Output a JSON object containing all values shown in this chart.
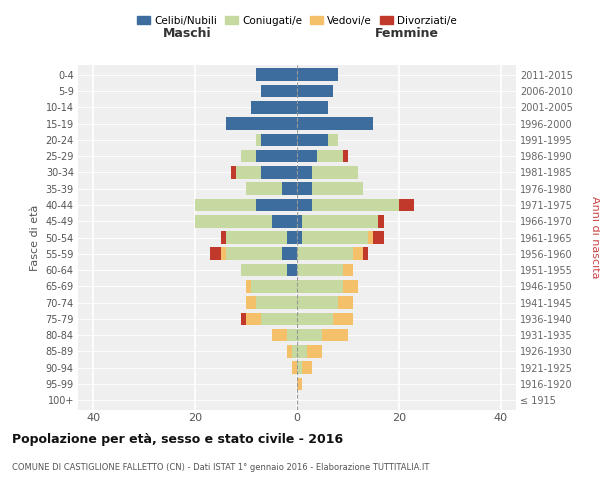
{
  "age_groups": [
    "100+",
    "95-99",
    "90-94",
    "85-89",
    "80-84",
    "75-79",
    "70-74",
    "65-69",
    "60-64",
    "55-59",
    "50-54",
    "45-49",
    "40-44",
    "35-39",
    "30-34",
    "25-29",
    "20-24",
    "15-19",
    "10-14",
    "5-9",
    "0-4"
  ],
  "birth_years": [
    "≤ 1915",
    "1916-1920",
    "1921-1925",
    "1926-1930",
    "1931-1935",
    "1936-1940",
    "1941-1945",
    "1946-1950",
    "1951-1955",
    "1956-1960",
    "1961-1965",
    "1966-1970",
    "1971-1975",
    "1976-1980",
    "1981-1985",
    "1986-1990",
    "1991-1995",
    "1996-2000",
    "2001-2005",
    "2006-2010",
    "2011-2015"
  ],
  "male": {
    "celibi": [
      0,
      0,
      0,
      0,
      0,
      0,
      0,
      0,
      2,
      3,
      2,
      5,
      8,
      3,
      7,
      8,
      7,
      14,
      9,
      7,
      8
    ],
    "coniugati": [
      0,
      0,
      0,
      1,
      2,
      7,
      8,
      9,
      9,
      11,
      12,
      15,
      12,
      7,
      5,
      3,
      1,
      0,
      0,
      0,
      0
    ],
    "vedovi": [
      0,
      0,
      1,
      1,
      3,
      3,
      2,
      1,
      0,
      1,
      0,
      0,
      0,
      0,
      0,
      0,
      0,
      0,
      0,
      0,
      0
    ],
    "divorziati": [
      0,
      0,
      0,
      0,
      0,
      1,
      0,
      0,
      0,
      2,
      1,
      0,
      0,
      0,
      1,
      0,
      0,
      0,
      0,
      0,
      0
    ]
  },
  "female": {
    "nubili": [
      0,
      0,
      0,
      0,
      0,
      0,
      0,
      0,
      0,
      0,
      1,
      1,
      3,
      3,
      3,
      4,
      6,
      15,
      6,
      7,
      8
    ],
    "coniugate": [
      0,
      0,
      1,
      2,
      5,
      7,
      8,
      9,
      9,
      11,
      13,
      15,
      17,
      10,
      9,
      5,
      2,
      0,
      0,
      0,
      0
    ],
    "vedove": [
      0,
      1,
      2,
      3,
      5,
      4,
      3,
      3,
      2,
      2,
      1,
      0,
      0,
      0,
      0,
      0,
      0,
      0,
      0,
      0,
      0
    ],
    "divorziate": [
      0,
      0,
      0,
      0,
      0,
      0,
      0,
      0,
      0,
      1,
      2,
      1,
      3,
      0,
      0,
      1,
      0,
      0,
      0,
      0,
      0
    ]
  },
  "colors": {
    "celibi": "#3d6d9e",
    "coniugati": "#c5d9a0",
    "vedovi": "#f5c06a",
    "divorziati": "#c0392b"
  },
  "xlim": 43,
  "title": "Popolazione per età, sesso e stato civile - 2016",
  "subtitle": "COMUNE DI CASTIGLIONE FALLETTO (CN) - Dati ISTAT 1° gennaio 2016 - Elaborazione TUTTITALIA.IT",
  "ylabel_left": "Fasce di età",
  "ylabel_right": "Anni di nascita",
  "xlabel_maschi": "Maschi",
  "xlabel_femmine": "Femmine",
  "legend_labels": [
    "Celibi/Nubili",
    "Coniugati/e",
    "Vedovi/e",
    "Divorziati/e"
  ],
  "bg_color": "#ffffff",
  "plot_bg": "#efefef"
}
